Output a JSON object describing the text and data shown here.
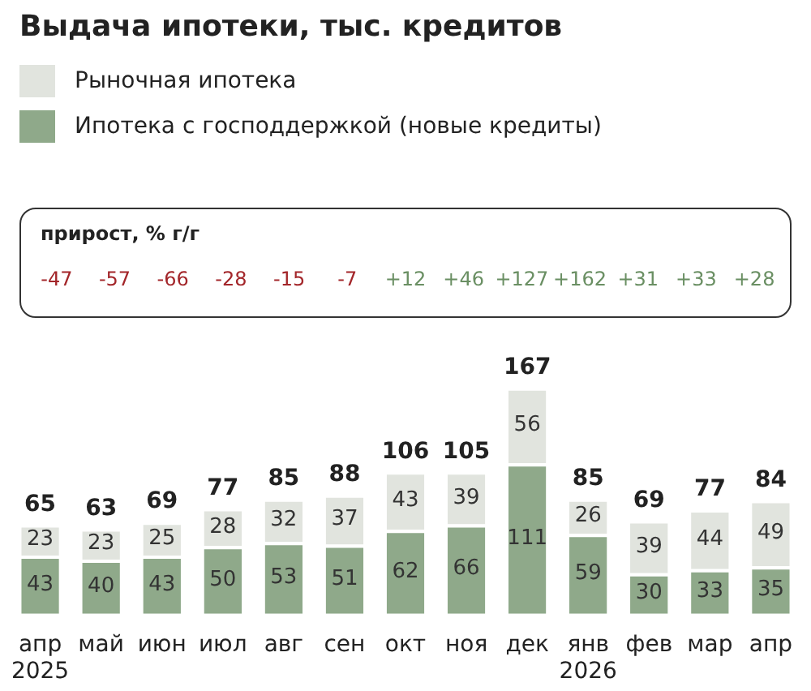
{
  "chart_data": {
    "type": "bar",
    "title": "Выдача ипотеки, тыс. кредитов",
    "categories": [
      "апр\n2025",
      "май",
      "июн",
      "июл",
      "авг",
      "сен",
      "окт",
      "ноя",
      "дек",
      "янв\n2026",
      "фев",
      "мар",
      "апр"
    ],
    "series": [
      {
        "name": "Ипотека с господдержкой (новые кредиты)",
        "color": "#8fa98a",
        "values": [
          43,
          40,
          43,
          50,
          53,
          51,
          62,
          66,
          111,
          59,
          30,
          33,
          35
        ]
      },
      {
        "name": "Рыночная ипотека",
        "color": "#e1e4de",
        "values": [
          23,
          23,
          25,
          28,
          32,
          37,
          43,
          39,
          56,
          26,
          39,
          44,
          49
        ]
      }
    ],
    "stacked": true,
    "data_labels": true,
    "totals": [
      "65",
      "63",
      "69",
      "77",
      "85",
      "88",
      "106",
      "105",
      "167",
      "85",
      "69",
      "77",
      "84"
    ],
    "legend": "top left",
    "grid": false,
    "annotations": [
      "прирост, % г/г",
      "-47",
      "-57",
      "-66",
      "-28",
      "-15",
      "-7",
      "+12",
      "+46",
      "+127",
      "+162",
      "+31",
      "+33",
      "+28"
    ]
  }
}
